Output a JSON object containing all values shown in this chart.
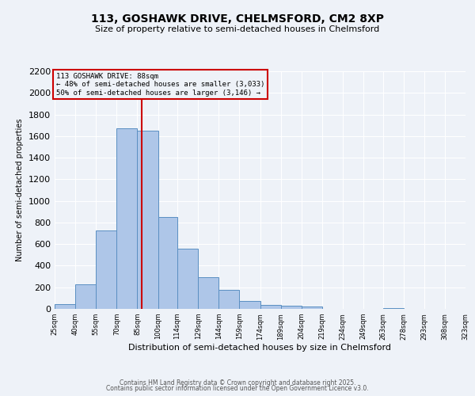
{
  "title1": "113, GOSHAWK DRIVE, CHELMSFORD, CM2 8XP",
  "title2": "Size of property relative to semi-detached houses in Chelmsford",
  "xlabel": "Distribution of semi-detached houses by size in Chelmsford",
  "ylabel": "Number of semi-detached properties",
  "bin_edges": [
    25,
    40,
    55,
    70,
    85,
    100,
    114,
    129,
    144,
    159,
    174,
    189,
    204,
    219,
    234,
    249,
    263,
    278,
    293,
    308,
    323
  ],
  "bar_heights": [
    45,
    225,
    725,
    1675,
    1650,
    850,
    560,
    295,
    175,
    70,
    40,
    30,
    20,
    0,
    0,
    0,
    10,
    0,
    0,
    0
  ],
  "bar_color": "#aec6e8",
  "bar_edge_color": "#5a8fc2",
  "vline_x": 88,
  "vline_color": "#cc0000",
  "annotation_title": "113 GOSHAWK DRIVE: 88sqm",
  "annotation_line1": "← 48% of semi-detached houses are smaller (3,033)",
  "annotation_line2": "50% of semi-detached houses are larger (3,146) →",
  "annotation_box_color": "#cc0000",
  "ylim": [
    0,
    2200
  ],
  "yticks": [
    0,
    200,
    400,
    600,
    800,
    1000,
    1200,
    1400,
    1600,
    1800,
    2000,
    2200
  ],
  "tick_labels": [
    "25sqm",
    "40sqm",
    "55sqm",
    "70sqm",
    "85sqm",
    "100sqm",
    "114sqm",
    "129sqm",
    "144sqm",
    "159sqm",
    "174sqm",
    "189sqm",
    "204sqm",
    "219sqm",
    "234sqm",
    "249sqm",
    "263sqm",
    "278sqm",
    "293sqm",
    "308sqm",
    "323sqm"
  ],
  "footer1": "Contains HM Land Registry data © Crown copyright and database right 2025.",
  "footer2": "Contains public sector information licensed under the Open Government Licence v3.0.",
  "background_color": "#eef2f8",
  "grid_color": "#ffffff",
  "title1_fontsize": 10,
  "title2_fontsize": 8,
  "ylabel_fontsize": 7,
  "xlabel_fontsize": 8,
  "ytick_fontsize": 8,
  "xtick_fontsize": 6,
  "footer_fontsize": 5.5,
  "footer_color": "#555555"
}
